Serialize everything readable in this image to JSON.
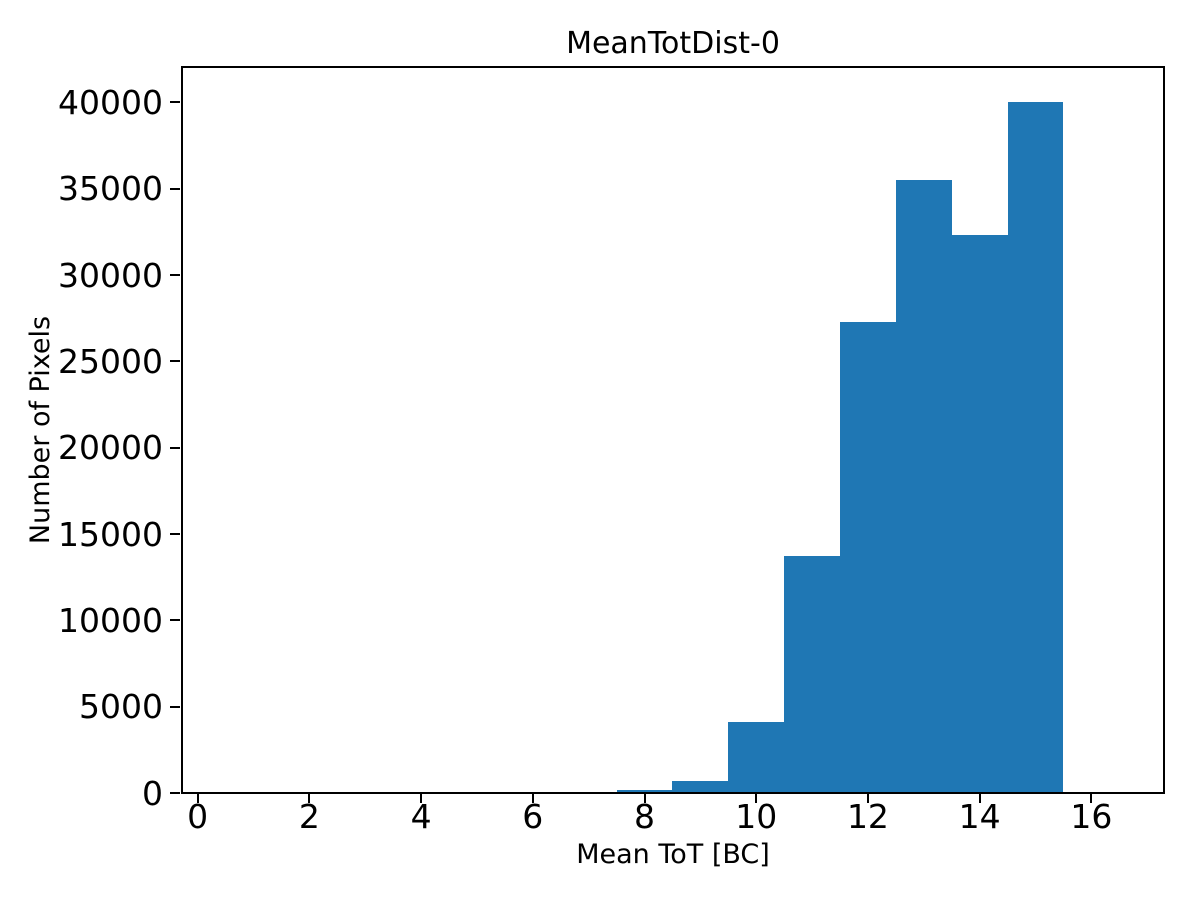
{
  "figure": {
    "background_color": "#ffffff",
    "text_color": "#000000"
  },
  "chart_data": {
    "type": "bar",
    "subtype": "histogram",
    "title": "MeanTotDist-0",
    "xlabel": "Mean ToT [BC]",
    "ylabel": "Number of Pixels",
    "bar_color": "#1f77b4",
    "axis_color": "#000000",
    "grid": false,
    "legend": null,
    "bin_edges": [
      7.5,
      8.5,
      9.5,
      10.5,
      11.5,
      12.5,
      13.5,
      14.5,
      15.5
    ],
    "counts": [
      200,
      700,
      4100,
      13700,
      27300,
      35500,
      32300,
      40000
    ],
    "x_ticks": [
      0,
      2,
      4,
      6,
      8,
      10,
      12,
      14,
      16
    ],
    "y_ticks": [
      0,
      5000,
      10000,
      15000,
      20000,
      25000,
      30000,
      35000,
      40000
    ],
    "xlim": [
      -0.28,
      17.3
    ],
    "ylim": [
      0,
      42050
    ]
  }
}
